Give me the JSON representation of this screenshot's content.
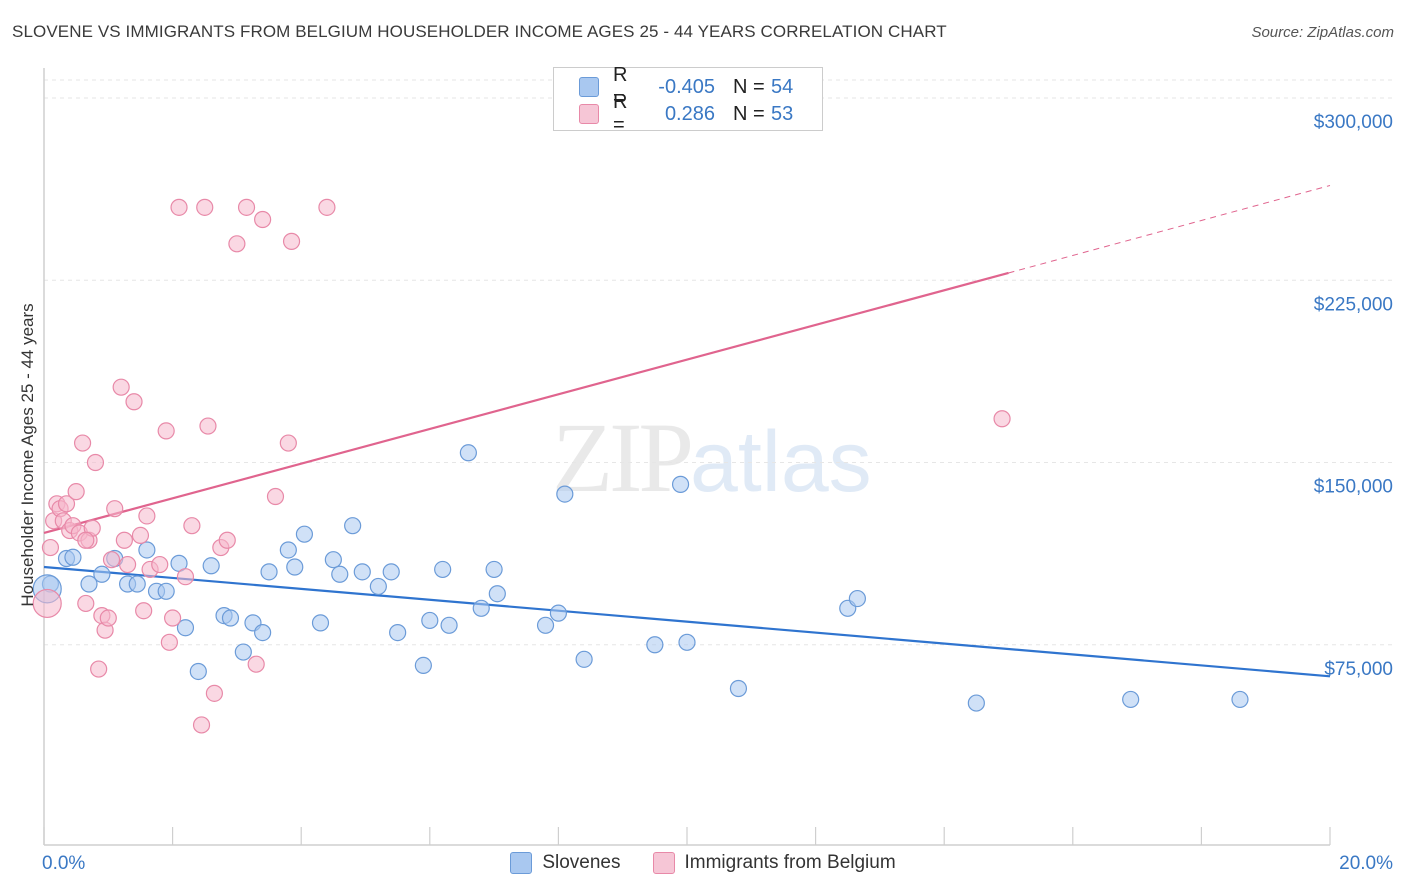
{
  "header": {
    "title": "SLOVENE VS IMMIGRANTS FROM BELGIUM HOUSEHOLDER INCOME AGES 25 - 44 YEARS CORRELATION CHART",
    "source": "Source: ZipAtlas.com"
  },
  "watermark": {
    "zip": "ZIP",
    "atlas": "atlas"
  },
  "legend": {
    "rows": [
      {
        "r_label": "R =",
        "r_value": "-0.405",
        "n_label": "N =",
        "n_value": "54"
      },
      {
        "r_label": "R =",
        "r_value": "0.286",
        "n_label": "N =",
        "n_value": "53"
      }
    ]
  },
  "colors": {
    "blue_fill": "#a9c8f0",
    "blue_stroke": "#6b9bd8",
    "blue_line": "#2f74cf",
    "pink_fill": "#f6b8cc",
    "pink_stroke": "#e889a8",
    "pink_line": "#e0648e",
    "tick_text": "#3a78c4",
    "grid": "#e6e6e6"
  },
  "chart_data": {
    "type": "scatter",
    "title": "SLOVENE VS IMMIGRANTS FROM BELGIUM HOUSEHOLDER INCOME AGES 25 - 44 YEARS CORRELATION CHART",
    "xlabel": "",
    "ylabel": "Householder Income Ages 25 - 44 years",
    "xlim": [
      0,
      20
    ],
    "ylim": [
      0,
      300000
    ],
    "x_tick_labels": [
      "0.0%",
      "20.0%"
    ],
    "y_ticks": [
      75000,
      150000,
      225000,
      300000
    ],
    "y_tick_labels": [
      "$75,000",
      "$150,000",
      "$225,000",
      "$300,000"
    ],
    "grid": true,
    "legend_position": "bottom",
    "series": [
      {
        "name": "Slovenes",
        "color": "#6b9bd8",
        "points": [
          [
            0.1,
            100000
          ],
          [
            0.35,
            110500
          ],
          [
            0.45,
            111000
          ],
          [
            0.7,
            100000
          ],
          [
            0.9,
            104000
          ],
          [
            1.1,
            110500
          ],
          [
            1.3,
            100000
          ],
          [
            1.45,
            100000
          ],
          [
            1.6,
            114000
          ],
          [
            1.75,
            97000
          ],
          [
            1.9,
            97000
          ],
          [
            2.1,
            108500
          ],
          [
            2.2,
            82000
          ],
          [
            2.4,
            64000
          ],
          [
            2.6,
            107500
          ],
          [
            2.8,
            87000
          ],
          [
            2.9,
            86000
          ],
          [
            3.1,
            72000
          ],
          [
            3.25,
            84000
          ],
          [
            3.4,
            80000
          ],
          [
            3.5,
            105000
          ],
          [
            3.8,
            114000
          ],
          [
            3.9,
            107000
          ],
          [
            4.05,
            120500
          ],
          [
            4.3,
            84000
          ],
          [
            4.5,
            110000
          ],
          [
            4.6,
            104000
          ],
          [
            4.8,
            124000
          ],
          [
            4.95,
            105000
          ],
          [
            5.2,
            99000
          ],
          [
            5.4,
            105000
          ],
          [
            5.5,
            80000
          ],
          [
            5.9,
            66500
          ],
          [
            6.0,
            85000
          ],
          [
            6.2,
            106000
          ],
          [
            6.3,
            83000
          ],
          [
            6.6,
            154000
          ],
          [
            6.8,
            90000
          ],
          [
            7.0,
            106000
          ],
          [
            7.05,
            96000
          ],
          [
            7.8,
            83000
          ],
          [
            8.0,
            88000
          ],
          [
            8.1,
            137000
          ],
          [
            8.4,
            69000
          ],
          [
            9.5,
            75000
          ],
          [
            9.9,
            141000
          ],
          [
            10.0,
            76000
          ],
          [
            10.8,
            57000
          ],
          [
            12.5,
            90000
          ],
          [
            12.65,
            94000
          ],
          [
            14.5,
            51000
          ],
          [
            16.9,
            52500
          ],
          [
            18.6,
            52500
          ],
          [
            0.05,
            98000
          ]
        ]
      },
      {
        "name": "Immigrants from Belgium",
        "color": "#e889a8",
        "points": [
          [
            0.05,
            92000
          ],
          [
            0.1,
            115000
          ],
          [
            0.15,
            126000
          ],
          [
            0.2,
            133000
          ],
          [
            0.25,
            131000
          ],
          [
            0.3,
            126000
          ],
          [
            0.35,
            133000
          ],
          [
            0.4,
            122000
          ],
          [
            0.45,
            124000
          ],
          [
            0.5,
            138000
          ],
          [
            0.55,
            121000
          ],
          [
            0.6,
            158000
          ],
          [
            0.65,
            92000
          ],
          [
            0.7,
            118000
          ],
          [
            0.75,
            123000
          ],
          [
            0.8,
            150000
          ],
          [
            0.85,
            65000
          ],
          [
            0.9,
            87000
          ],
          [
            0.95,
            81000
          ],
          [
            1.0,
            86000
          ],
          [
            1.05,
            110000
          ],
          [
            1.1,
            131000
          ],
          [
            1.2,
            181000
          ],
          [
            1.25,
            118000
          ],
          [
            1.3,
            108000
          ],
          [
            1.4,
            175000
          ],
          [
            1.5,
            120000
          ],
          [
            1.55,
            89000
          ],
          [
            1.6,
            128000
          ],
          [
            1.65,
            106000
          ],
          [
            1.8,
            108000
          ],
          [
            1.9,
            163000
          ],
          [
            1.95,
            76000
          ],
          [
            2.0,
            86000
          ],
          [
            2.1,
            255000
          ],
          [
            2.2,
            103000
          ],
          [
            2.3,
            124000
          ],
          [
            2.45,
            42000
          ],
          [
            2.5,
            255000
          ],
          [
            2.55,
            165000
          ],
          [
            2.65,
            55000
          ],
          [
            2.75,
            115000
          ],
          [
            2.85,
            118000
          ],
          [
            3.0,
            240000
          ],
          [
            3.15,
            255000
          ],
          [
            3.3,
            67000
          ],
          [
            3.4,
            250000
          ],
          [
            3.6,
            136000
          ],
          [
            3.8,
            158000
          ],
          [
            3.85,
            241000
          ],
          [
            4.4,
            255000
          ],
          [
            14.9,
            168000
          ],
          [
            0.65,
            118000
          ]
        ]
      }
    ],
    "trendlines": [
      {
        "series": "Slovenes",
        "x": [
          0,
          20
        ],
        "y": [
          107000,
          62000
        ],
        "style": "solid"
      },
      {
        "series": "Immigrants from Belgium",
        "x": [
          0,
          15
        ],
        "y": [
          121000,
          228000
        ],
        "style": "solid"
      },
      {
        "series": "Immigrants from Belgium",
        "x": [
          15,
          20
        ],
        "y": [
          228000,
          264000
        ],
        "style": "dashed"
      }
    ]
  }
}
